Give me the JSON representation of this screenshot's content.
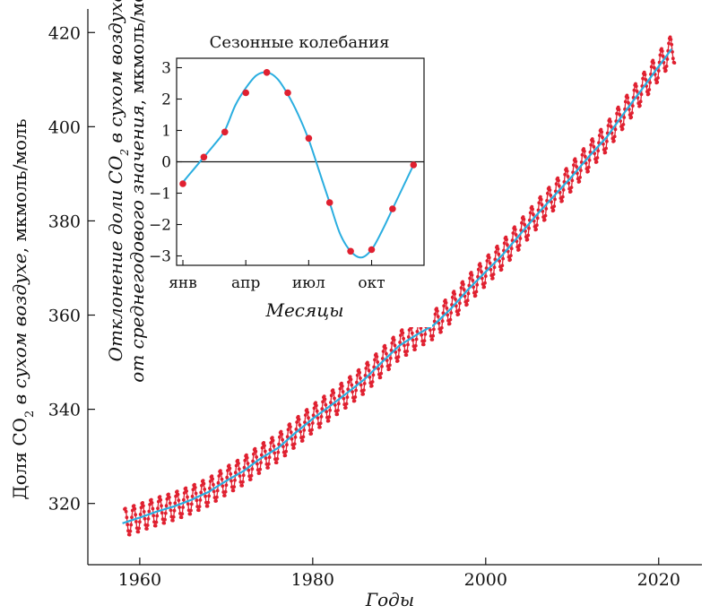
{
  "colors": {
    "trend": "#2aaee0",
    "measurements": "#e02030",
    "axis": "#111111",
    "background": "#ffffff"
  },
  "chart_data": [
    {
      "type": "line",
      "xlabel": "Годы",
      "ylabel_prefix": "Доля CO",
      "ylabel_subscript": "2",
      "ylabel_italic_suffix": " в сухом воздухе",
      "ylabel_unit": ", мкмоль/моль",
      "xlim": [
        1954,
        2025
      ],
      "ylim": [
        307,
        425
      ],
      "x_ticks": [
        1960,
        1980,
        2000,
        2020
      ],
      "y_ticks": [
        320,
        340,
        360,
        380,
        400,
        420
      ],
      "grid": false,
      "seasonal_amplitude": 3,
      "series": [
        {
          "role": "trend",
          "x": [
            1958,
            1960,
            1962,
            1964,
            1966,
            1968,
            1970,
            1972,
            1974,
            1976,
            1978,
            1980,
            1982,
            1984,
            1986,
            1988,
            1990,
            1992,
            1994,
            1996,
            1998,
            2000,
            2002,
            2004,
            2006,
            2008,
            2010,
            2012,
            2014,
            2016,
            2018,
            2020,
            2021.5
          ],
          "y": [
            315.8,
            317.0,
            318.3,
            319.4,
            320.8,
            322.5,
            324.8,
            326.9,
            329.6,
            331.8,
            335.0,
            338.0,
            340.7,
            343.5,
            346.4,
            350.0,
            353.5,
            355.8,
            357.9,
            361.4,
            365.5,
            369.2,
            372.9,
            377.2,
            381.5,
            385.5,
            389.5,
            393.8,
            397.8,
            402.9,
            407.8,
            412.8,
            416.5
          ]
        },
        {
          "role": "monthly-measurements",
          "x_start": 1958.25,
          "x_end": 2021.9
        }
      ]
    },
    {
      "type": "line",
      "title": "Сезонные колебания",
      "xlabel": "Месяцы",
      "ylabel_line1_prefix": "Отклонение доли CO",
      "ylabel_line1_subscript": "2",
      "ylabel_line1_suffix": " в сухом воздухе",
      "ylabel_line2_italic": "от среднегодового значения",
      "ylabel_line2_unit": ", мкмоль/моль",
      "x_tick_labels": [
        "янв",
        "апр",
        "июл",
        "окт"
      ],
      "x_tick_positions": [
        1,
        4,
        7,
        10
      ],
      "xlim": [
        0.7,
        12.5
      ],
      "ylim": [
        -3.3,
        3.3
      ],
      "y_ticks": [
        -3,
        -2,
        -1,
        0,
        1,
        2,
        3
      ],
      "zero_line": true,
      "grid": false,
      "months": [
        1,
        2,
        3,
        4,
        5,
        6,
        7,
        8,
        9,
        10,
        11,
        12
      ],
      "values": [
        -0.7,
        0.15,
        0.95,
        2.2,
        2.85,
        2.2,
        0.75,
        -1.3,
        -2.85,
        -2.8,
        -1.5,
        -0.1
      ],
      "fit_curve": {
        "x": [
          1,
          1.5,
          2,
          2.5,
          3,
          3.5,
          4,
          4.5,
          5,
          5.5,
          6,
          6.5,
          7,
          7.5,
          8,
          8.5,
          9,
          9.5,
          10,
          10.5,
          11,
          11.5,
          12
        ],
        "y": [
          -0.65,
          -0.25,
          0.15,
          0.55,
          1.0,
          1.8,
          2.35,
          2.75,
          2.85,
          2.65,
          2.15,
          1.5,
          0.7,
          -0.3,
          -1.3,
          -2.3,
          -2.85,
          -3.05,
          -2.8,
          -2.2,
          -1.5,
          -0.8,
          -0.1
        ]
      }
    }
  ]
}
